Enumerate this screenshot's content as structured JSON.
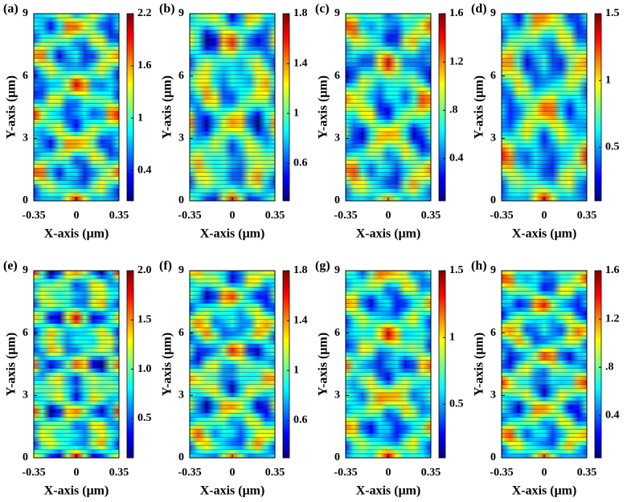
{
  "chart_data": [
    {
      "type": "heatmap",
      "panel": "(a)",
      "xlabel": "X-axis (μm)",
      "ylabel": "Y-axis (μm)",
      "colormap": "jet",
      "xlim": [
        -0.35,
        0.35
      ],
      "ylim": [
        0,
        9
      ],
      "xticks": [
        -0.35,
        0,
        0.35
      ],
      "yticks": [
        0,
        3,
        6,
        9
      ],
      "clim": [
        0.05,
        2.2
      ],
      "cticks": [
        0.4,
        1,
        1.6,
        2.2
      ]
    },
    {
      "type": "heatmap",
      "panel": "(b)",
      "xlabel": "X-axis (μm)",
      "ylabel": "Y-axis (μm)",
      "colormap": "jet",
      "xlim": [
        -0.35,
        0.35
      ],
      "ylim": [
        0,
        9
      ],
      "xticks": [
        -0.35,
        0,
        0.35
      ],
      "yticks": [
        0,
        3,
        6,
        9
      ],
      "clim": [
        0.3,
        1.8
      ],
      "cticks": [
        0.6,
        1,
        1.4,
        1.8
      ]
    },
    {
      "type": "heatmap",
      "panel": "(c)",
      "xlabel": "X-axis (μm)",
      "ylabel": "Y-axis (μm)",
      "colormap": "jet",
      "xlim": [
        -0.35,
        0.35
      ],
      "ylim": [
        0,
        9
      ],
      "xticks": [
        -0.35,
        0,
        0.35
      ],
      "yticks": [
        0,
        3,
        6,
        9
      ],
      "clim": [
        0.05,
        1.6
      ],
      "cticks": [
        0.4,
        {
          "value": 0.8,
          "label": ".8"
        },
        1.2,
        1.6
      ]
    },
    {
      "type": "heatmap",
      "panel": "(d)",
      "xlabel": "X-axis (μm)",
      "ylabel": "Y-axis (μm)",
      "colormap": "jet",
      "xlim": [
        -0.35,
        0.35
      ],
      "ylim": [
        0,
        9
      ],
      "xticks": [
        -0.35,
        0,
        0.35
      ],
      "yticks": [
        0,
        3,
        6,
        9
      ],
      "clim": [
        0.1,
        1.5
      ],
      "cticks": [
        0.5,
        1,
        1.5
      ]
    },
    {
      "type": "heatmap",
      "panel": "(e)",
      "xlabel": "X-axis (μm)",
      "ylabel": "Y-axis (μm)",
      "colormap": "jet",
      "xlim": [
        -0.35,
        0.35
      ],
      "ylim": [
        0,
        9
      ],
      "xticks": [
        -0.35,
        0,
        0.35
      ],
      "yticks": [
        0,
        3,
        6,
        9
      ],
      "clim": [
        0.1,
        2.0
      ],
      "cticks": [
        0.5,
        {
          "value": 1.0,
          "label": "1.0"
        },
        1.5,
        {
          "value": 2.0,
          "label": "2.0"
        }
      ]
    },
    {
      "type": "heatmap",
      "panel": "(f)",
      "xlabel": "X-axis (μm)",
      "ylabel": "Y-axis (μm)",
      "colormap": "jet",
      "xlim": [
        -0.35,
        0.35
      ],
      "ylim": [
        0,
        9
      ],
      "xticks": [
        -0.35,
        0,
        0.35
      ],
      "yticks": [
        0,
        3,
        6,
        9
      ],
      "clim": [
        0.3,
        1.8
      ],
      "cticks": [
        0.6,
        1,
        1.4,
        1.8
      ]
    },
    {
      "type": "heatmap",
      "panel": "(g)",
      "xlabel": "X-axis (μm)",
      "ylabel": "Y-axis (μm)",
      "colormap": "jet",
      "xlim": [
        -0.35,
        0.35
      ],
      "ylim": [
        0,
        9
      ],
      "xticks": [
        -0.35,
        0,
        0.35
      ],
      "yticks": [
        0,
        3,
        6,
        9
      ],
      "clim": [
        0.1,
        1.5
      ],
      "cticks": [
        0.5,
        1,
        1.5
      ]
    },
    {
      "type": "heatmap",
      "panel": "(h)",
      "xlabel": "X-axis (μm)",
      "ylabel": "Y-axis (μm)",
      "colormap": "jet",
      "xlim": [
        -0.35,
        0.35
      ],
      "ylim": [
        0,
        9
      ],
      "xticks": [
        -0.35,
        0,
        0.35
      ],
      "yticks": [
        0,
        3,
        6,
        9
      ],
      "clim": [
        0.05,
        1.6
      ],
      "cticks": [
        0.4,
        {
          "value": 0.8,
          "label": ".8"
        },
        1.2,
        1.6
      ]
    }
  ]
}
